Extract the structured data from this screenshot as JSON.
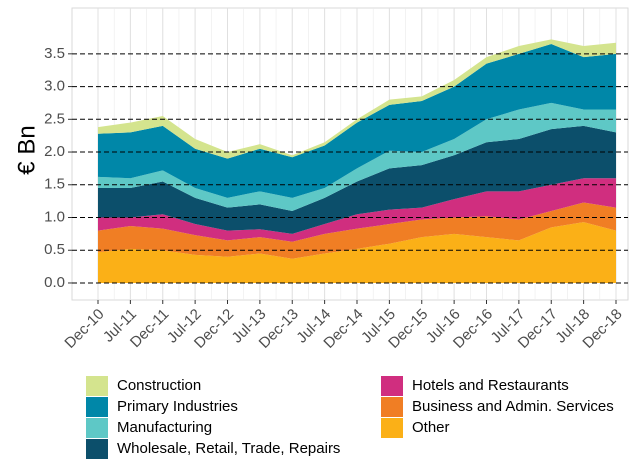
{
  "chart_data": {
    "type": "stacked_area",
    "y_label": "€ Bn",
    "categories": [
      "Dec-10",
      "Jul-11",
      "Dec-11",
      "Jul-12",
      "Dec-12",
      "Jul-13",
      "Dec-13",
      "Jul-14",
      "Dec-14",
      "Jul-15",
      "Dec-15",
      "Jul-16",
      "Dec-16",
      "Jul-17",
      "Dec-17",
      "Jul-18",
      "Dec-18"
    ],
    "series": [
      {
        "name": "Construction",
        "color": "#d4e48e",
        "values": [
          0.1,
          0.15,
          0.15,
          0.15,
          0.1,
          0.07,
          0.03,
          0.05,
          0.05,
          0.08,
          0.07,
          0.1,
          0.1,
          0.12,
          0.07,
          0.17,
          0.17
        ]
      },
      {
        "name": "Primary Industries",
        "color": "#0087a8",
        "values": [
          0.66,
          0.7,
          0.68,
          0.6,
          0.6,
          0.65,
          0.62,
          0.65,
          0.7,
          0.7,
          0.78,
          0.8,
          0.85,
          0.85,
          0.9,
          0.8,
          0.85
        ]
      },
      {
        "name": "Manufacturing",
        "color": "#5ec8c6",
        "values": [
          0.17,
          0.15,
          0.17,
          0.15,
          0.15,
          0.2,
          0.2,
          0.15,
          0.2,
          0.27,
          0.2,
          0.25,
          0.35,
          0.45,
          0.4,
          0.25,
          0.35
        ]
      },
      {
        "name": "Wholesale, Retail, Trade, Repairs",
        "color": "#0c4f6b",
        "values": [
          0.45,
          0.45,
          0.5,
          0.4,
          0.35,
          0.38,
          0.35,
          0.4,
          0.5,
          0.63,
          0.65,
          0.67,
          0.75,
          0.8,
          0.85,
          0.8,
          0.7
        ]
      },
      {
        "name": "Hotels and Restaurants",
        "color": "#d02e7f",
        "values": [
          0.2,
          0.13,
          0.22,
          0.17,
          0.15,
          0.12,
          0.12,
          0.15,
          0.22,
          0.22,
          0.18,
          0.28,
          0.38,
          0.43,
          0.4,
          0.37,
          0.45
        ]
      },
      {
        "name": "Business and Admin. Services",
        "color": "#f07e24",
        "values": [
          0.33,
          0.35,
          0.33,
          0.3,
          0.25,
          0.25,
          0.26,
          0.3,
          0.31,
          0.3,
          0.27,
          0.25,
          0.32,
          0.32,
          0.25,
          0.3,
          0.35
        ]
      },
      {
        "name": "Other",
        "color": "#fbb017",
        "values": [
          0.47,
          0.52,
          0.5,
          0.43,
          0.4,
          0.45,
          0.37,
          0.45,
          0.52,
          0.6,
          0.7,
          0.75,
          0.7,
          0.65,
          0.85,
          0.93,
          0.8
        ]
      }
    ],
    "ylim": [
      -0.26,
      4.2
    ],
    "yticks": [
      {
        "value": 0,
        "label": "0.0"
      },
      0.5,
      {
        "value": 1,
        "label": "1.0"
      },
      1.5,
      {
        "value": 2,
        "label": "2.0"
      },
      2.5,
      {
        "value": 3,
        "label": "3.0"
      },
      3.5
    ],
    "grid": true,
    "legend": "bottom"
  }
}
